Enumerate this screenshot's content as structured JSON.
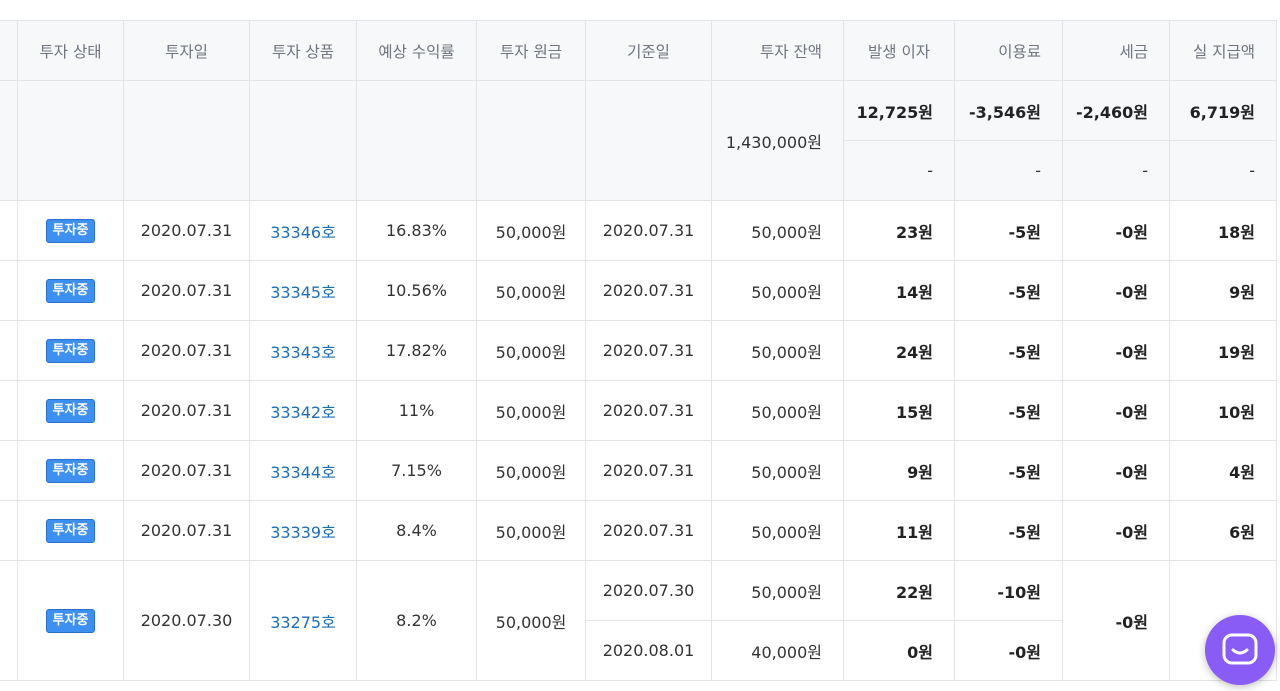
{
  "table": {
    "headers": {
      "status": "투자 상태",
      "invest_date": "투자일",
      "product": "투자 상품",
      "expected_rate": "예상 수익률",
      "principal": "투자 원금",
      "base_date": "기준일",
      "balance": "투자 잔액",
      "interest": "발생 이자",
      "fee": "이용료",
      "tax": "세금",
      "payout": "실 지급액"
    },
    "summary": {
      "balance": "1,430,000원",
      "interest": "12,725원",
      "fee": "-3,546원",
      "tax": "-2,460원",
      "payout": "6,719원",
      "interest2": "-",
      "fee2": "-",
      "tax2": "-",
      "payout2": "-"
    },
    "rows": [
      {
        "status": "투자중",
        "invest_date": "2020.07.31",
        "product": "33346호",
        "expected_rate": "16.83%",
        "principal": "50,000원",
        "base_date": "2020.07.31",
        "balance": "50,000원",
        "interest": "23원",
        "fee": "-5원",
        "tax": "-0원",
        "payout": "18원"
      },
      {
        "status": "투자중",
        "invest_date": "2020.07.31",
        "product": "33345호",
        "expected_rate": "10.56%",
        "principal": "50,000원",
        "base_date": "2020.07.31",
        "balance": "50,000원",
        "interest": "14원",
        "fee": "-5원",
        "tax": "-0원",
        "payout": "9원"
      },
      {
        "status": "투자중",
        "invest_date": "2020.07.31",
        "product": "33343호",
        "expected_rate": "17.82%",
        "principal": "50,000원",
        "base_date": "2020.07.31",
        "balance": "50,000원",
        "interest": "24원",
        "fee": "-5원",
        "tax": "-0원",
        "payout": "19원"
      },
      {
        "status": "투자중",
        "invest_date": "2020.07.31",
        "product": "33342호",
        "expected_rate": "11%",
        "principal": "50,000원",
        "base_date": "2020.07.31",
        "balance": "50,000원",
        "interest": "15원",
        "fee": "-5원",
        "tax": "-0원",
        "payout": "10원"
      },
      {
        "status": "투자중",
        "invest_date": "2020.07.31",
        "product": "33344호",
        "expected_rate": "7.15%",
        "principal": "50,000원",
        "base_date": "2020.07.31",
        "balance": "50,000원",
        "interest": "9원",
        "fee": "-5원",
        "tax": "-0원",
        "payout": "4원"
      },
      {
        "status": "투자중",
        "invest_date": "2020.07.31",
        "product": "33339호",
        "expected_rate": "8.4%",
        "principal": "50,000원",
        "base_date": "2020.07.31",
        "balance": "50,000원",
        "interest": "11원",
        "fee": "-5원",
        "tax": "-0원",
        "payout": "6원"
      }
    ],
    "multi_row": {
      "status": "투자중",
      "invest_date": "2020.07.30",
      "product": "33275호",
      "expected_rate": "8.2%",
      "principal": "50,000원",
      "tax": "-0원",
      "payout": "",
      "sub": [
        {
          "base_date": "2020.07.30",
          "balance": "50,000원",
          "interest": "22원",
          "fee": "-10원"
        },
        {
          "base_date": "2020.08.01",
          "balance": "40,000원",
          "interest": "0원",
          "fee": "-0원"
        }
      ]
    }
  },
  "chat": {
    "icon": "chat-icon",
    "color": "#8a5cf6"
  }
}
